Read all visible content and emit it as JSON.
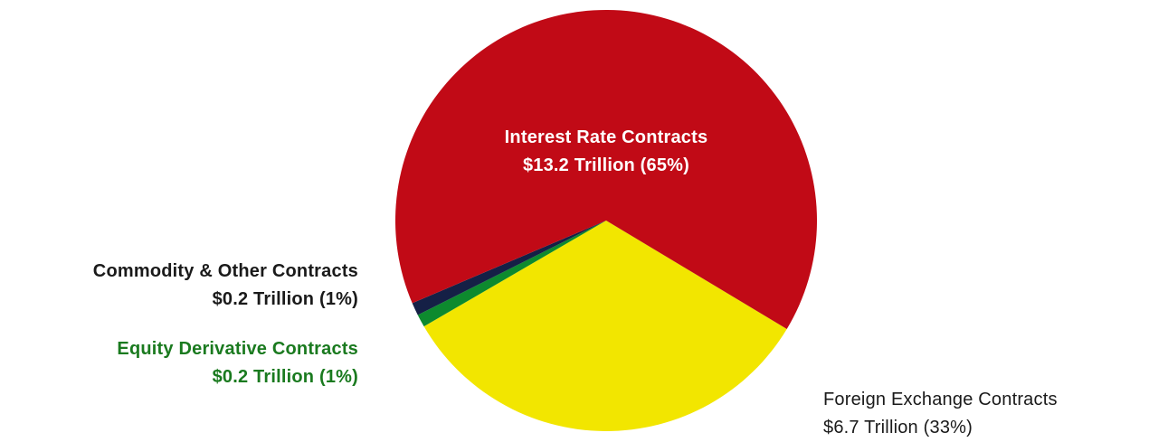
{
  "chart_data": {
    "type": "pie",
    "title": "",
    "slices": [
      {
        "name": "Interest Rate Contracts",
        "amount_label": "$13.2 Trillion (65%)",
        "value": 13.2,
        "percent": 65,
        "color": "#c10a16",
        "label_color": "#ffffff"
      },
      {
        "name": "Foreign Exchange Contracts",
        "amount_label": "$6.7 Trillion (33%)",
        "value": 6.7,
        "percent": 33,
        "color": "#f2e600",
        "label_color": "#1a1a1a"
      },
      {
        "name": "Equity Derivative Contracts",
        "amount_label": "$0.2 Trillion (1%)",
        "value": 0.2,
        "percent": 1,
        "color": "#0d8a2e",
        "label_color": "#1a7a1f"
      },
      {
        "name": "Commodity & Other Contracts",
        "amount_label": "$0.2 Trillion (1%)",
        "value": 0.2,
        "percent": 1,
        "color": "#152046",
        "label_color": "#1a1a1a"
      }
    ]
  }
}
